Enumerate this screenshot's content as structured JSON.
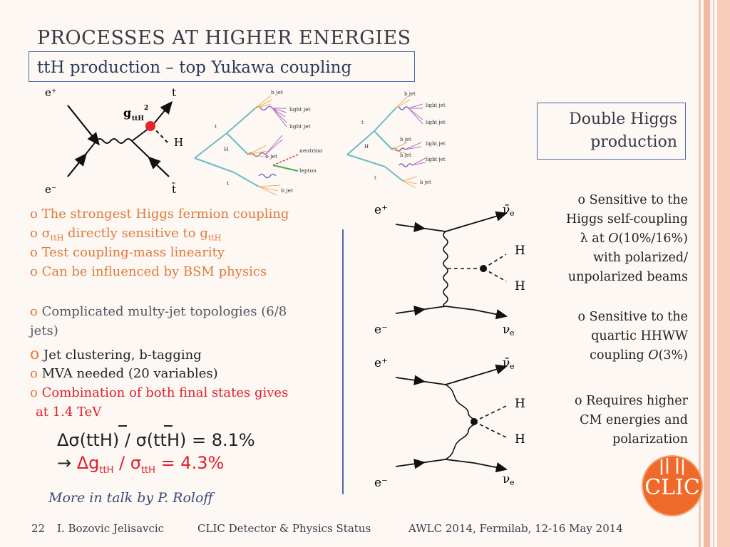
{
  "slide": {
    "title": "PROCESSES AT HIGHER ENERGIES",
    "subtitle": "ttH production – top Yukawa coupling",
    "double_higgs_label_line1": "Double Higgs",
    "double_higgs_label_line2": "production"
  },
  "diagram_tth": {
    "e_plus": "e⁺",
    "e_minus": "e⁻",
    "t": "t",
    "tbar": "t̄",
    "H": "H",
    "coupling_g": "g",
    "coupling_sub": "ttH",
    "coupling_sup": "2"
  },
  "jets1": {
    "labels": [
      "b jet",
      "light jet",
      "light jet",
      "b jet",
      "neutrino",
      "lepton",
      "b jet",
      "t",
      "H",
      "t"
    ]
  },
  "jets2": {
    "labels": [
      "b jet",
      "light jet",
      "light jet",
      "b jet",
      "light jet",
      "b jet",
      "light jet",
      "b jet",
      "t",
      "H",
      "t"
    ]
  },
  "tth_bullets": {
    "b1": "The strongest Higgs fermion coupling",
    "b2_sigma": "σ",
    "b2_sub": "ttH",
    "b2_text": " directly sensitive to g",
    "b2_sub2": "ttH",
    "b3": "Test coupling-mass linearity",
    "b4": "Can be influenced by BSM physics",
    "b5_line1": "Complicated multy-jet topologies (6/8",
    "b5_line2": "jets)",
    "b6": "Jet clustering, b-tagging",
    "b7": "MVA needed (20 variables)",
    "b8_line1": "Combination of both final states gives",
    "b8_line2": "at 1.4 TeV"
  },
  "equations": {
    "eq1": "Δσ(ttH) / σ(ttH) = 8.1%",
    "eq2_arrow": "→",
    "eq2_dg": "Δg",
    "eq2_sub1": "ttH",
    "eq2_slash": " / σ",
    "eq2_sub2": "ttH",
    "eq2_rest": " = 4.3%"
  },
  "diagram_hh1": {
    "e_plus": "e⁺",
    "e_minus": "e⁻",
    "nubar": "ν̄",
    "nu": "ν",
    "sub_e": "e",
    "H1": "H",
    "H2": "H"
  },
  "diagram_hh2": {
    "e_plus": "e⁺",
    "e_minus": "e⁻",
    "nubar": "ν̄",
    "nu": "ν",
    "sub_e": "e",
    "H1": "H",
    "H2": "H"
  },
  "right_bullets": {
    "r1_l1": "Sensitive to the",
    "r1_l2": "Higgs self-coupling",
    "r1_l3a": "λ at ",
    "r1_l3b": "O",
    "r1_l3c": "(10%/16%)",
    "r1_l4": "with polarized/",
    "r1_l5": "unpolarized beams",
    "r2_l1": "Sensitive to the",
    "r2_l2": "quartic HHWW",
    "r2_l3a": "coupling ",
    "r2_l3b": "O",
    "r2_l3c": "(3%)",
    "r3_l1": "Requires higher",
    "r3_l2": "CM energies and",
    "r3_l3": "polarization"
  },
  "bullet_mark": "o",
  "more": "More in talk by  P. Roloff",
  "logo_text": "CLIC",
  "footer": {
    "page": "22",
    "author": "I. Bozovic Jelisavcic",
    "talk": "CLIC Detector & Physics Status",
    "event": "AWLC 2014, Fermilab, 12-16 May 2014"
  },
  "colors": {
    "accent_orange": "#e07a3a",
    "accent_red": "#e0202a",
    "box_blue": "#4a6aa8",
    "stripe_pink": "#f3b8a0",
    "logo_orange": "#ef6a2a"
  }
}
